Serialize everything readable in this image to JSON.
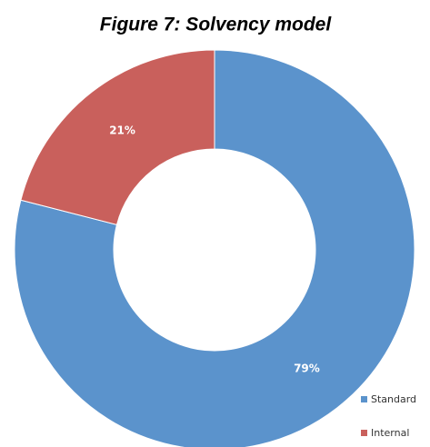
{
  "chart_data": {
    "type": "donut",
    "title": "Figure 7: Solvency model",
    "categories": [
      "Standard",
      "Internal"
    ],
    "values": [
      79,
      21
    ],
    "value_labels": [
      "79%",
      "21%"
    ],
    "colors": [
      "#5b93cc",
      "#c9605c"
    ]
  }
}
